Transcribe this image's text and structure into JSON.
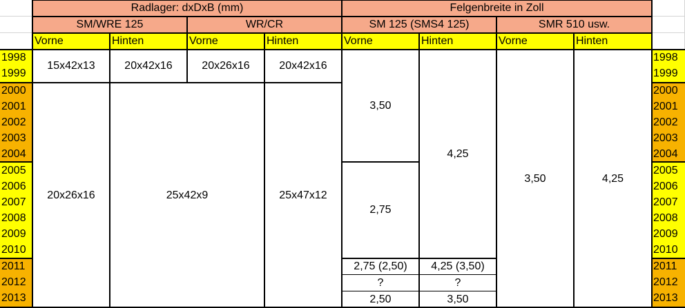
{
  "header": {
    "radlager": "Radlager: dxDxB (mm)",
    "felgenbreite": "Felgenbreite in Zoll",
    "groups": [
      "SM/WRE 125",
      "WR/CR",
      "SM 125 (SMS4 125)",
      "SMR 510 usw."
    ],
    "vorne": "Vorne",
    "hinten": "Hinten"
  },
  "years": {
    "a": [
      "1998",
      "1999"
    ],
    "b": [
      "2000",
      "2001",
      "2002",
      "2003",
      "2004"
    ],
    "c": [
      "2005",
      "2006",
      "2007",
      "2008",
      "2009",
      "2010"
    ],
    "d": [
      "2011",
      "2012",
      "2013"
    ]
  },
  "radlager": {
    "r1998_sm_vorne": "15x42x13",
    "r1998_sm_hinten": "20x42x16",
    "r1998_wr_vorne": "20x26x16",
    "r1998_wr_hinten": "20x42x16",
    "r2000_sm_vorne": "20x26x16",
    "r2000_hinten_wr_vorne": "25x42x9",
    "r2000_wr_hinten": "25x47x12"
  },
  "felgen": {
    "sm_vorne_1998_2004": "3,50",
    "sm_vorne_2005_2010": "2,75",
    "sm_vorne_2011": "2,75 (2,50)",
    "sm_vorne_2012": "?",
    "sm_vorne_2013": "2,50",
    "sm_hinten_1998_2010": "4,25",
    "sm_hinten_2011": "4,25 (3,50)",
    "sm_hinten_2012": "?",
    "sm_hinten_2013": "3,50",
    "smr_vorne": "3,50",
    "smr_hinten": "4,25"
  }
}
